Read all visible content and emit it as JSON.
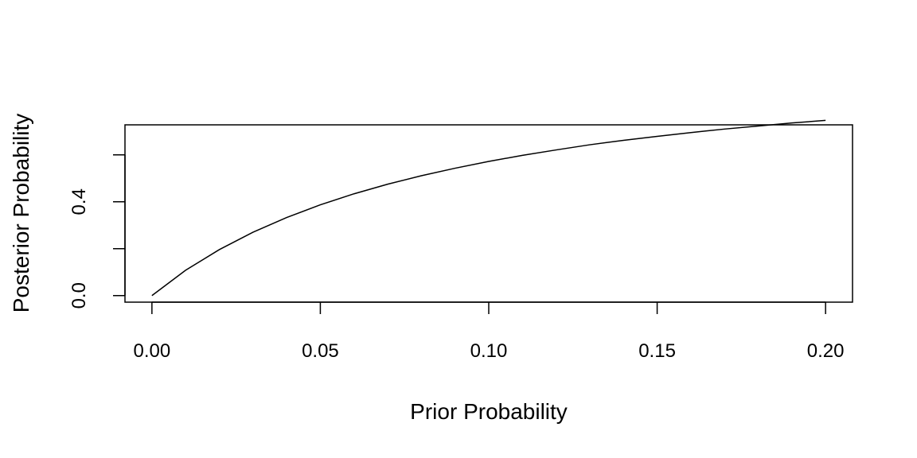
{
  "chart_data": {
    "type": "line",
    "title": "",
    "xlabel": "Prior Probability",
    "ylabel": "Posterior Probability",
    "xlim": [
      -0.008,
      0.208
    ],
    "ylim": [
      -0.028,
      0.728
    ],
    "x_ticks": [
      0.0,
      0.05,
      0.1,
      0.15,
      0.2
    ],
    "x_tick_labels": [
      "0.00",
      "0.05",
      "0.10",
      "0.15",
      "0.20"
    ],
    "y_ticks": [
      0.0,
      0.2,
      0.4,
      0.6
    ],
    "y_tick_labels": [
      "0.0",
      "",
      "0.4",
      ""
    ],
    "grid": false,
    "series": [
      {
        "x": [
          0.0,
          0.01,
          0.02,
          0.03,
          0.04,
          0.05,
          0.06,
          0.07,
          0.08,
          0.09,
          0.1,
          0.11,
          0.12,
          0.13,
          0.14,
          0.15,
          0.16,
          0.17,
          0.18,
          0.19,
          0.2
        ],
        "y": [
          0.0,
          0.108,
          0.196,
          0.27,
          0.333,
          0.387,
          0.434,
          0.475,
          0.511,
          0.543,
          0.572,
          0.598,
          0.621,
          0.643,
          0.662,
          0.679,
          0.695,
          0.71,
          0.723,
          0.736,
          0.747
        ]
      }
    ]
  }
}
